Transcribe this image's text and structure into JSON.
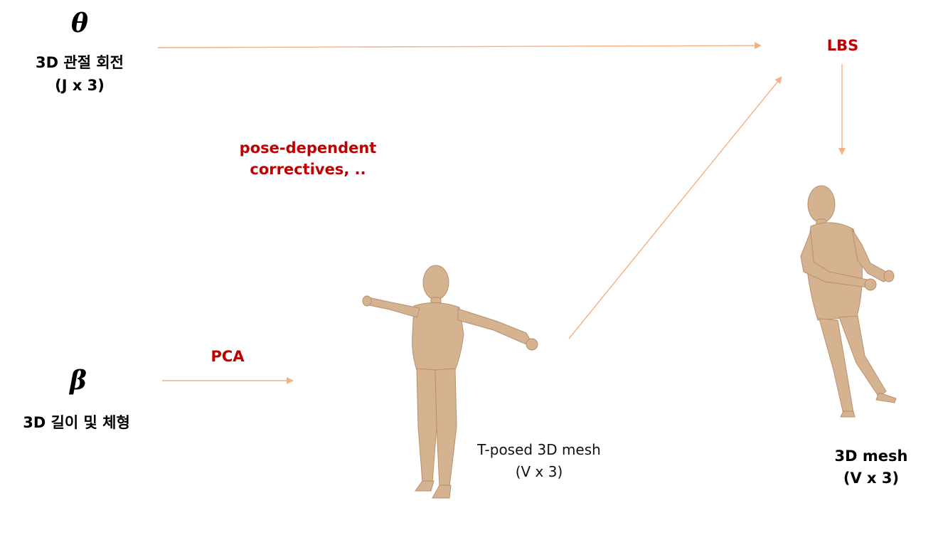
{
  "inputs": {
    "theta": {
      "symbol": "θ",
      "label": "3D 관절 회전",
      "dims": "(J x 3)"
    },
    "beta": {
      "symbol": "β",
      "label": "3D 길이 및 체형"
    }
  },
  "operations": {
    "pca": "PCA",
    "lbs": "LBS",
    "correctives_line1": "pose-dependent",
    "correctives_line2": "correctives, .."
  },
  "outputs": {
    "tposed": {
      "label": "T-posed 3D mesh",
      "dims": "(V x 3)"
    },
    "final": {
      "label": "3D mesh",
      "dims": "(V x 3)"
    }
  },
  "colors": {
    "arrow": "#f4b183",
    "body": "#d5b290",
    "body_shade": "#b8906b",
    "highlight": "#c00000"
  }
}
